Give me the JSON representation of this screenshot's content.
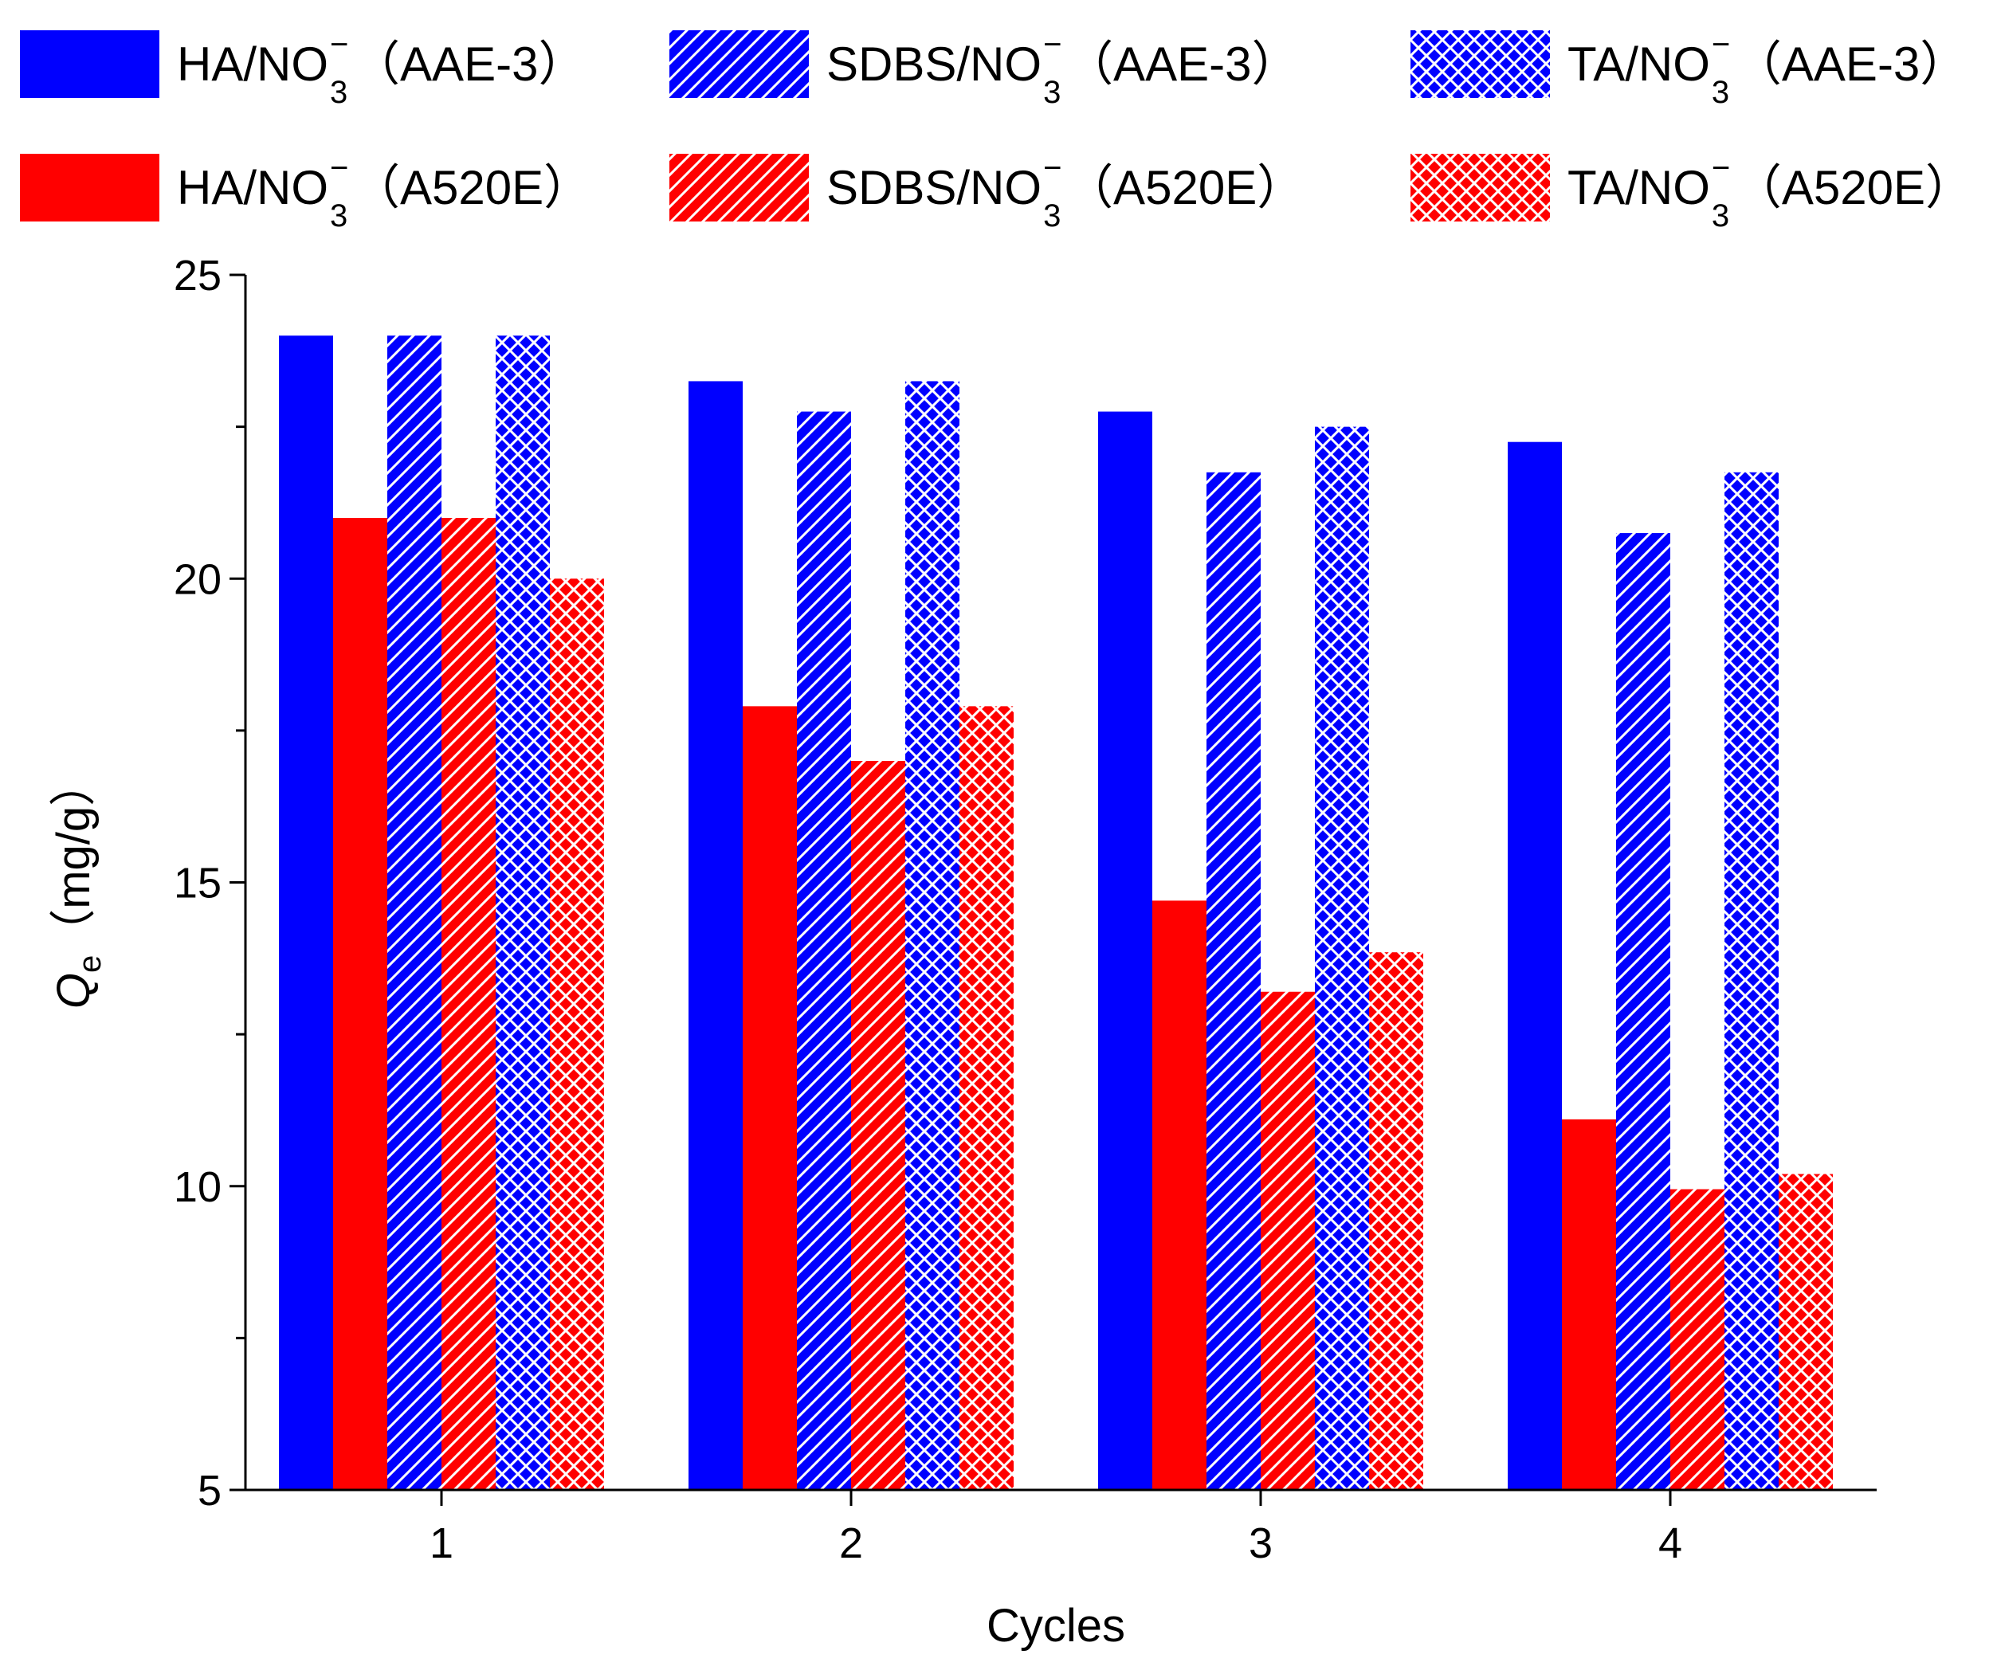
{
  "chart_data": {
    "type": "bar",
    "title": "",
    "xlabel": "Cycles",
    "ylabel_main": "Q",
    "ylabel_sub": "e",
    "ylabel_unit": "（mg/g）",
    "categories": [
      "1",
      "2",
      "3",
      "4"
    ],
    "ylim": [
      5,
      25
    ],
    "yticks": [
      "5",
      "10",
      "15",
      "20",
      "25"
    ],
    "series": [
      {
        "name_main": "HA/NO",
        "name_sub": "3",
        "name_sup": "−",
        "name_suffix": "（AAE-3）",
        "color": "#0000ff",
        "pattern": "solid",
        "values": [
          24.0,
          23.25,
          22.75,
          22.25
        ]
      },
      {
        "name_main": "HA/NO",
        "name_sub": "3",
        "name_sup": "−",
        "name_suffix": "（A520E）",
        "color": "#ff0000",
        "pattern": "solid",
        "values": [
          21.0,
          17.9,
          14.7,
          11.1
        ]
      },
      {
        "name_main": "SDBS/NO",
        "name_sub": "3",
        "name_sup": "−",
        "name_suffix": "（AAE-3）",
        "color": "#0000ff",
        "pattern": "diagonal",
        "values": [
          24.0,
          22.75,
          21.75,
          20.75
        ]
      },
      {
        "name_main": "SDBS/NO",
        "name_sub": "3",
        "name_sup": "−",
        "name_suffix": "（A520E）",
        "color": "#ff0000",
        "pattern": "diagonal",
        "values": [
          21.0,
          17.0,
          13.2,
          9.95
        ]
      },
      {
        "name_main": "TA/NO",
        "name_sub": "3",
        "name_sup": "−",
        "name_suffix": "（AAE-3）",
        "color": "#0000ff",
        "pattern": "crosshatch",
        "values": [
          24.0,
          23.25,
          22.5,
          21.75
        ]
      },
      {
        "name_main": "TA/NO",
        "name_sub": "3",
        "name_sup": "−",
        "name_suffix": "（A520E）",
        "color": "#ff0000",
        "pattern": "crosshatch",
        "values": [
          20.0,
          17.9,
          13.85,
          10.2
        ]
      }
    ],
    "legend_order": [
      0,
      2,
      4,
      1,
      3,
      5
    ],
    "legend_position": "top",
    "grid": false
  }
}
